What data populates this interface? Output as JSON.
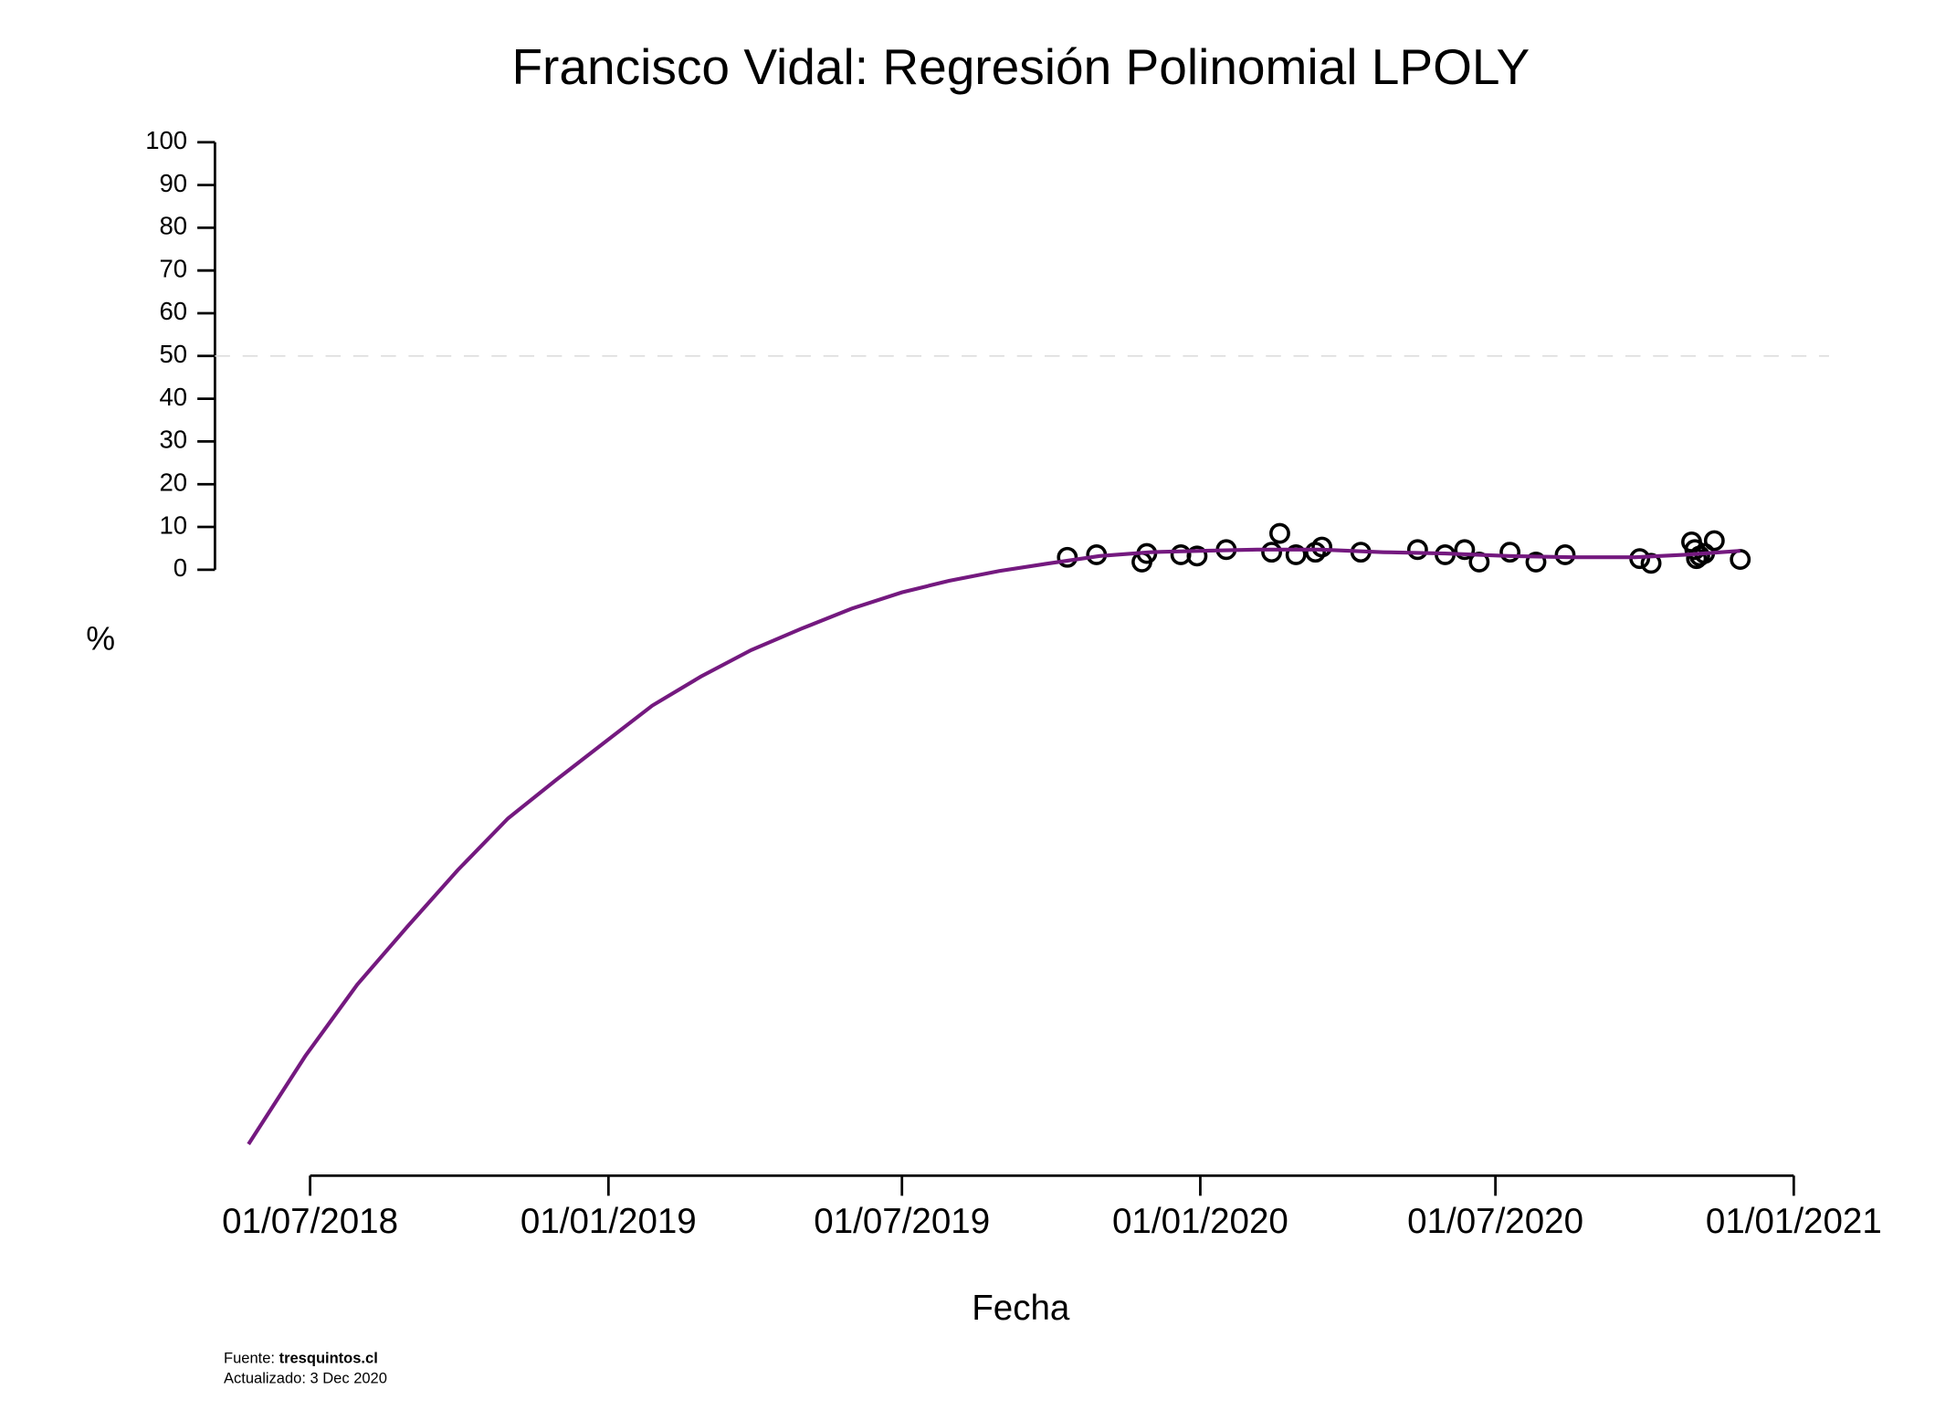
{
  "chart_data": {
    "type": "scatter",
    "title": "Francisco Vidal: Regresión Polinomial LPOLY",
    "x_label": "Fecha",
    "y_label": "%",
    "xlim": [
      "2018-06-01",
      "2021-01-15"
    ],
    "xticks": [
      {
        "value": "2018-07-01",
        "label": "01/07/2018"
      },
      {
        "value": "2019-01-01",
        "label": "01/01/2019"
      },
      {
        "value": "2019-07-01",
        "label": "01/07/2019"
      },
      {
        "value": "2020-01-01",
        "label": "01/01/2020"
      },
      {
        "value": "2020-07-01",
        "label": "01/07/2020"
      },
      {
        "value": "2021-01-01",
        "label": "01/01/2021"
      }
    ],
    "ylim": [
      -140,
      105
    ],
    "yticks": [
      0,
      10,
      20,
      30,
      40,
      50,
      60,
      70,
      80,
      90,
      100
    ],
    "hline": 50,
    "series": [
      {
        "type": "scatter",
        "color": "#000000",
        "x": [
          "2019-10-11",
          "2019-10-29",
          "2019-11-26",
          "2019-11-29",
          "2019-12-20",
          "2019-12-30",
          "2020-01-17",
          "2020-02-14",
          "2020-02-19",
          "2020-02-29",
          "2020-03-12",
          "2020-03-16",
          "2020-04-09",
          "2020-05-14",
          "2020-05-31",
          "2020-06-12",
          "2020-06-21",
          "2020-07-10",
          "2020-07-26",
          "2020-08-13",
          "2020-09-28",
          "2020-10-05",
          "2020-10-30",
          "2020-11-01",
          "2020-11-02",
          "2020-11-04",
          "2020-11-07",
          "2020-11-13",
          "2020-11-29"
        ],
        "values": [
          2.9,
          3.5,
          1.8,
          3.8,
          3.5,
          3.2,
          4.7,
          4.1,
          8.5,
          3.5,
          4.1,
          5.3,
          4.1,
          4.7,
          3.5,
          4.7,
          1.8,
          4.1,
          1.8,
          3.5,
          2.6,
          1.5,
          6.5,
          4.7,
          2.6,
          3.2,
          3.8,
          6.8,
          2.4
        ]
      },
      {
        "type": "line",
        "color": "#74197f",
        "x": [
          "2018-05-24",
          "2018-06-28",
          "2018-07-30",
          "2018-08-30",
          "2018-09-30",
          "2018-10-31",
          "2018-11-30",
          "2019-01-01",
          "2019-01-28",
          "2019-02-27",
          "2019-03-30",
          "2019-04-30",
          "2019-05-31",
          "2019-07-01",
          "2019-07-30",
          "2019-08-30",
          "2019-09-30",
          "2019-10-31",
          "2019-12-01",
          "2020-01-01",
          "2020-02-05",
          "2020-03-15",
          "2020-04-23",
          "2020-05-31",
          "2020-07-09",
          "2020-08-17",
          "2020-09-25",
          "2020-10-26",
          "2020-11-29"
        ],
        "values": [
          -134.4,
          -113.8,
          -97.1,
          -83.5,
          -70.3,
          -58.2,
          -49.1,
          -39.7,
          -31.8,
          -25,
          -18.8,
          -13.8,
          -9.1,
          -5.3,
          -2.6,
          -0.3,
          1.5,
          3.2,
          4.1,
          4.4,
          4.7,
          4.7,
          4.1,
          3.8,
          3.2,
          2.9,
          2.9,
          3.5,
          4.4
        ]
      }
    ],
    "source_label": "Fuente:",
    "source": "tresquintos.cl",
    "updated": "Actualizado: 3 Dec 2020"
  }
}
